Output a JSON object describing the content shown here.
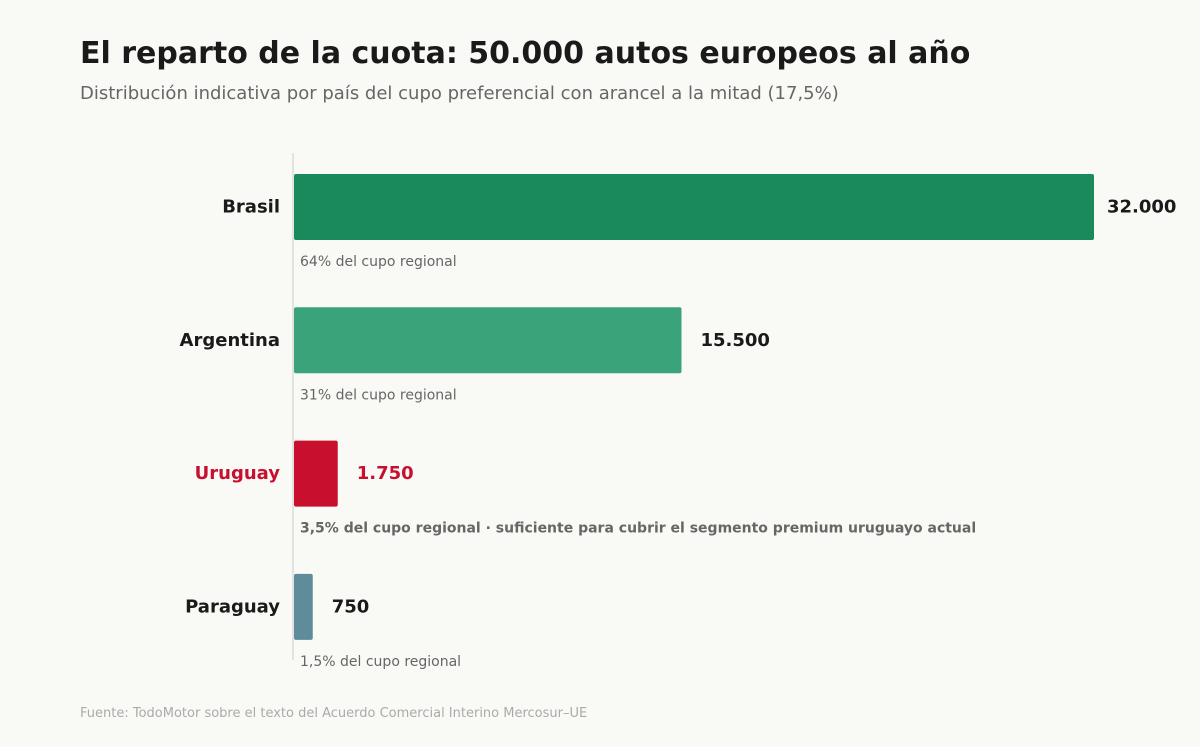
{
  "header": {
    "title": "El reparto de la cuota: 50.000 autos europeos al año",
    "subtitle": "Distribución indicativa por país del cupo preferencial con arancel a la mitad (17,5%)"
  },
  "footer": {
    "source": "Fuente: TodoMotor sobre el texto del Acuerdo Comercial Interino Mercosur–UE"
  },
  "colors": {
    "text_dark": "#1a1a1a",
    "text_muted": "#666666",
    "highlight": "#c8102e",
    "axis": "#cccccc"
  },
  "chart_data": {
    "type": "bar",
    "orientation": "horizontal",
    "title": "El reparto de la cuota: 50.000 autos europeos al año",
    "subtitle": "Distribución indicativa por país del cupo preferencial con arancel a la mitad (17,5%)",
    "xlim": [
      0,
      32000
    ],
    "grid": false,
    "categories": [
      "Brasil",
      "Argentina",
      "Uruguay",
      "Paraguay"
    ],
    "values": [
      32000,
      15500,
      1750,
      750
    ],
    "value_labels": [
      "32.000",
      "15.500",
      "1.750",
      "750"
    ],
    "annotations": [
      "64% del cupo regional",
      "31% del cupo regional",
      "3,5% del cupo regional · suficiente para cubrir el segmento premium uruguayo actual",
      "1,5% del cupo regional"
    ],
    "bar_colors": [
      "#1b8a5a",
      "#3aa37a",
      "#c8102e",
      "#5e8c9b"
    ],
    "highlighted": [
      false,
      false,
      true,
      false
    ]
  }
}
